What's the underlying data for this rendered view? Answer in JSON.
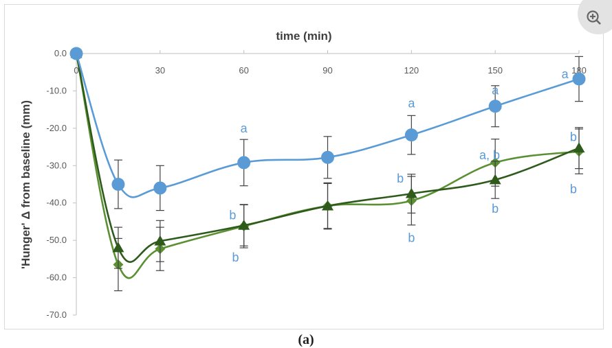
{
  "chart_data": {
    "type": "line",
    "title": "",
    "xlabel": "time (min)",
    "ylabel": "'Hunger' Δ from baseline (mm)",
    "x": [
      0,
      15,
      30,
      60,
      90,
      120,
      150,
      180
    ],
    "xticks": [
      0,
      30,
      60,
      90,
      120,
      150,
      180
    ],
    "xtick_labels": [
      "0",
      "30",
      "60",
      "90",
      "120",
      "150",
      "180"
    ],
    "xlim": [
      0,
      180
    ],
    "ylim": [
      -70,
      0
    ],
    "yticks": [
      0,
      -10,
      -20,
      -30,
      -40,
      -50,
      -60,
      -70
    ],
    "ytick_labels": [
      "0.0",
      "-10.0",
      "-20.0",
      "-30.0",
      "-40.0",
      "-50.0",
      "-60.0",
      "-70.0"
    ],
    "grid": false,
    "series": [
      {
        "name": "blue circles",
        "color": "#5b9bd5",
        "marker": "circle",
        "values": [
          0,
          -35,
          -36,
          -29.2,
          -27.8,
          -21.8,
          -14.1,
          -6.8
        ],
        "errors": [
          0,
          6.5,
          6,
          6.2,
          5.6,
          5.2,
          5.5,
          6.0
        ]
      },
      {
        "name": "green diamonds",
        "color": "#5a9031",
        "marker": "diamond",
        "values": [
          0,
          -56.5,
          -52.3,
          -46.2,
          -40.8,
          -39.4,
          -29.2,
          -26.2
        ],
        "errors": [
          0,
          7,
          5.8,
          5.8,
          6.2,
          6.5,
          6.3,
          6.0
        ]
      },
      {
        "name": "dark green triangles",
        "color": "#2e5a1c",
        "marker": "triangle",
        "values": [
          0,
          -52,
          -50.2,
          -46,
          -40.8,
          -37.5,
          -33.8,
          -25.3
        ],
        "errors": [
          0,
          5.5,
          5.5,
          5.5,
          6.0,
          5.2,
          5.0,
          5.5
        ]
      }
    ],
    "annotations": [
      {
        "text": "a",
        "x": 60,
        "y": -20
      },
      {
        "text": "a",
        "x": 120,
        "y": -13.3
      },
      {
        "text": "a",
        "x": 150,
        "y": -9.8
      },
      {
        "text": "a",
        "x": 175,
        "y": -5.5
      },
      {
        "text": "a, b",
        "x": 148,
        "y": -27.2
      },
      {
        "text": "b",
        "x": 178,
        "y": -22.3
      },
      {
        "text": "b",
        "x": 178,
        "y": -36.3
      },
      {
        "text": "b",
        "x": 150,
        "y": -41.5
      },
      {
        "text": "b",
        "x": 116,
        "y": -33.4
      },
      {
        "text": "b",
        "x": 120,
        "y": -49.3
      },
      {
        "text": "b",
        "x": 56,
        "y": -43.3
      },
      {
        "text": "b",
        "x": 57,
        "y": -54.6
      }
    ],
    "annotation_color": "#5b9bd5"
  },
  "panel_label": "(a)",
  "zoom_icon": "zoom-in-icon"
}
